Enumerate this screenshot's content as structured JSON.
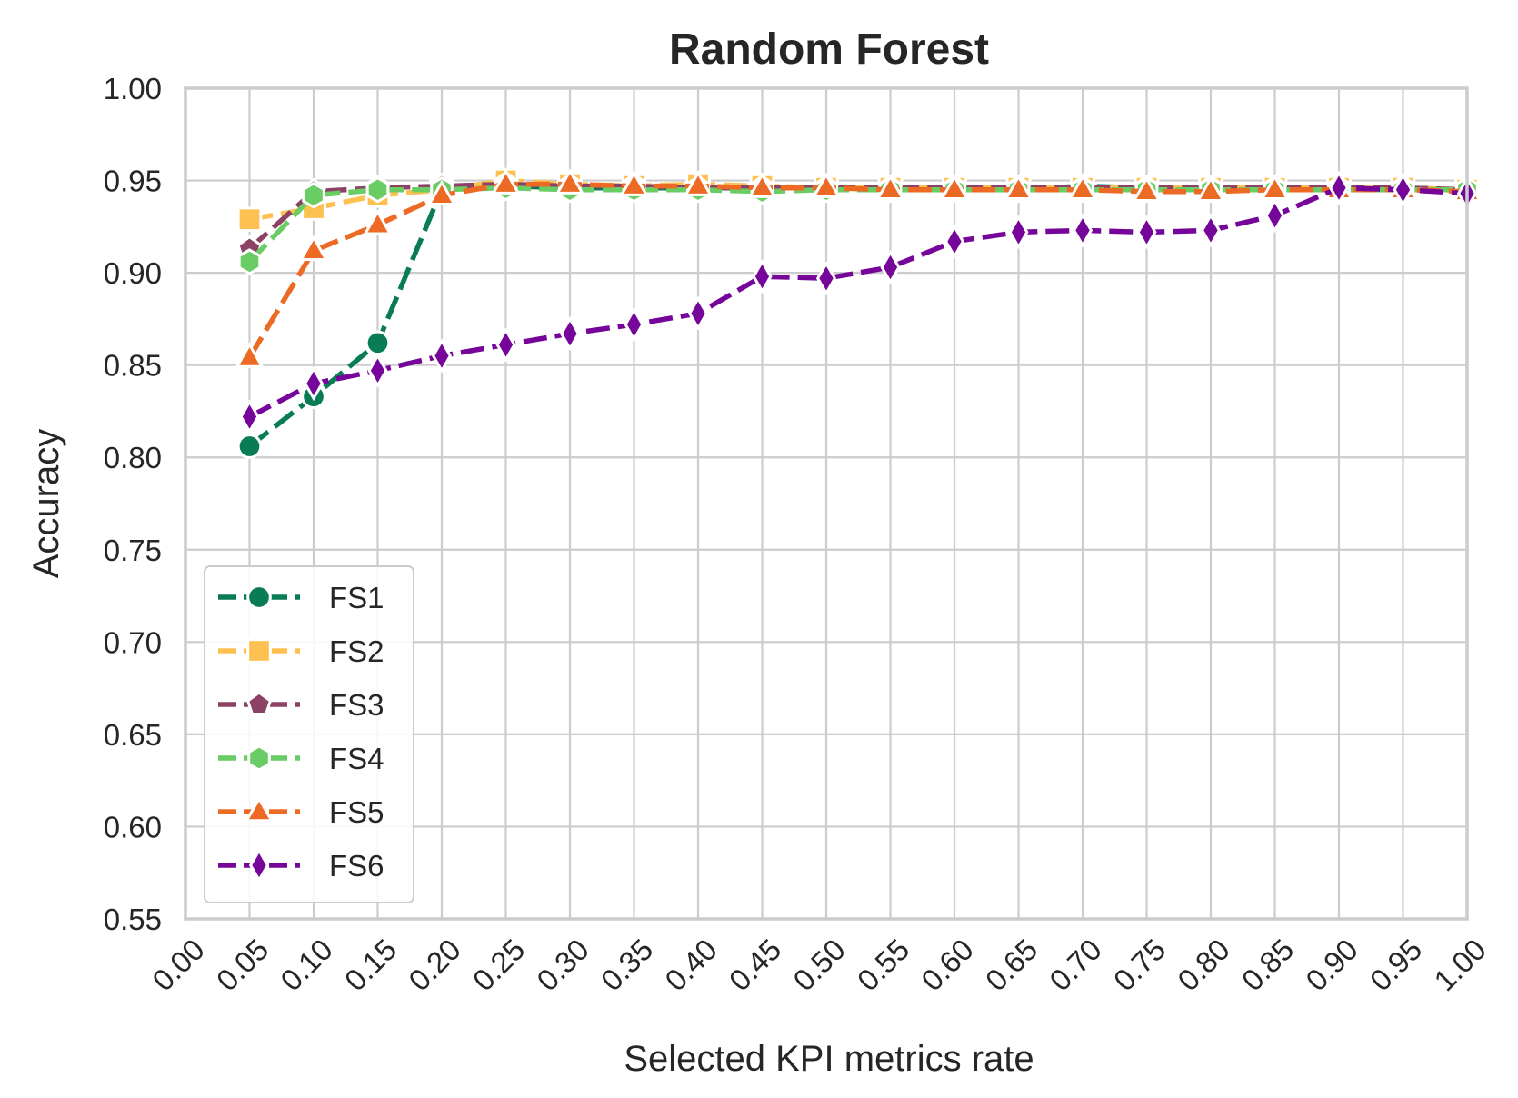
{
  "chart_data": {
    "type": "line",
    "title": "Random Forest",
    "xlabel": "Selected KPI metrics rate",
    "ylabel": "Accuracy",
    "xlim": [
      0,
      1
    ],
    "ylim": [
      0.55,
      1.0
    ],
    "grid": true,
    "legend_position": "lower-left",
    "x_ticks": [
      "0.00",
      "0.05",
      "0.10",
      "0.15",
      "0.20",
      "0.25",
      "0.30",
      "0.35",
      "0.40",
      "0.45",
      "0.50",
      "0.55",
      "0.60",
      "0.65",
      "0.70",
      "0.75",
      "0.80",
      "0.85",
      "0.90",
      "0.95",
      "1.00"
    ],
    "y_ticks": [
      "0.55",
      "0.60",
      "0.65",
      "0.70",
      "0.75",
      "0.80",
      "0.85",
      "0.90",
      "0.95",
      "1.00"
    ],
    "x": [
      0.05,
      0.1,
      0.15,
      0.2,
      0.25,
      0.3,
      0.35,
      0.4,
      0.45,
      0.5,
      0.55,
      0.6,
      0.65,
      0.7,
      0.75,
      0.8,
      0.85,
      0.9,
      0.95,
      1.0
    ],
    "series": [
      {
        "name": "FS1",
        "color": "#0a7c55",
        "marker": "circle",
        "values": [
          0.806,
          0.833,
          0.862,
          0.945,
          0.947,
          0.946,
          0.946,
          0.946,
          0.946,
          0.946,
          0.946,
          0.945,
          0.945,
          0.947,
          0.946,
          0.946,
          0.946,
          0.946,
          0.946,
          0.945
        ]
      },
      {
        "name": "FS2",
        "color": "#fdc151",
        "marker": "square",
        "values": [
          0.929,
          0.935,
          0.942,
          0.945,
          0.95,
          0.948,
          0.947,
          0.948,
          0.947,
          0.946,
          0.946,
          0.946,
          0.946,
          0.946,
          0.946,
          0.946,
          0.946,
          0.946,
          0.946,
          0.945
        ]
      },
      {
        "name": "FS3",
        "color": "#8c4264",
        "marker": "pentagon",
        "values": [
          0.913,
          0.944,
          0.946,
          0.947,
          0.948,
          0.947,
          0.947,
          0.946,
          0.946,
          0.946,
          0.946,
          0.946,
          0.946,
          0.946,
          0.946,
          0.946,
          0.946,
          0.946,
          0.946,
          0.945
        ]
      },
      {
        "name": "FS4",
        "color": "#6acc64",
        "marker": "hexagon",
        "values": [
          0.906,
          0.942,
          0.945,
          0.945,
          0.946,
          0.945,
          0.945,
          0.945,
          0.944,
          0.945,
          0.945,
          0.945,
          0.945,
          0.945,
          0.945,
          0.945,
          0.945,
          0.945,
          0.945,
          0.945
        ]
      },
      {
        "name": "FS5",
        "color": "#ed6a25",
        "marker": "triangle",
        "values": [
          0.854,
          0.912,
          0.926,
          0.942,
          0.948,
          0.948,
          0.947,
          0.947,
          0.946,
          0.946,
          0.945,
          0.945,
          0.945,
          0.945,
          0.944,
          0.944,
          0.945,
          0.945,
          0.945,
          0.944
        ]
      },
      {
        "name": "FS6",
        "color": "#76069a",
        "marker": "thin-diamond",
        "values": [
          0.822,
          0.84,
          0.847,
          0.855,
          0.861,
          0.867,
          0.872,
          0.878,
          0.898,
          0.897,
          0.903,
          0.917,
          0.922,
          0.923,
          0.922,
          0.923,
          0.931,
          0.946,
          0.945,
          0.943
        ]
      }
    ]
  }
}
